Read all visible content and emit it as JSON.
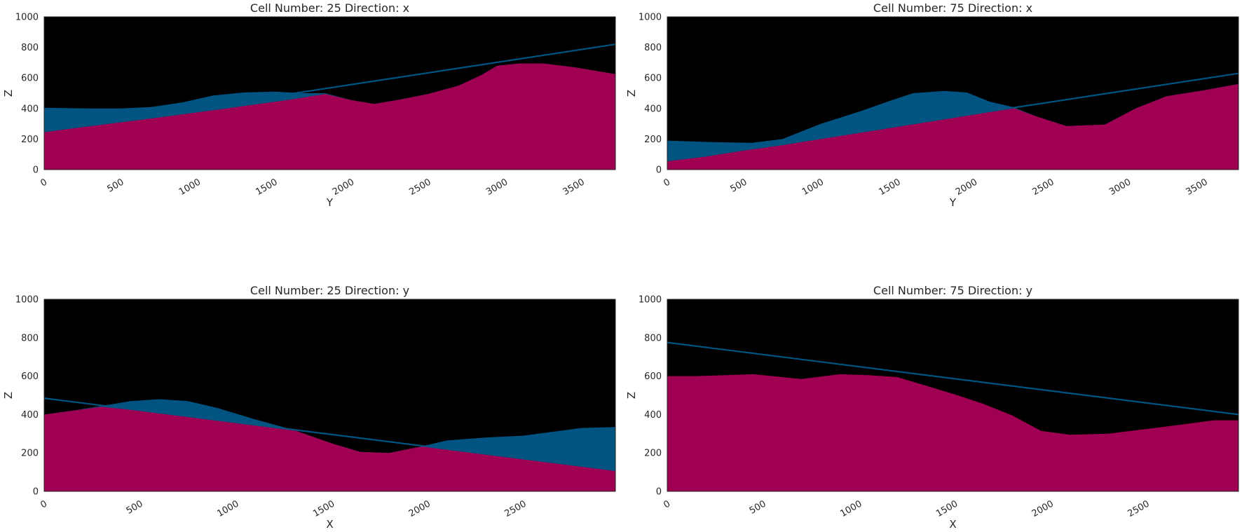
{
  "colors": {
    "background": "#000000",
    "lower_layer": "#9f0052",
    "upper_layer": "#015482",
    "fault_line": "#015482",
    "frame": "#262626"
  },
  "chart_data": [
    {
      "type": "area",
      "title": "Cell Number: 25 Direction: x",
      "xlabel": "Y",
      "ylabel": "Z",
      "xlim": [
        0,
        3720
      ],
      "ylim": [
        0,
        1000
      ],
      "xticks": [
        "0",
        "500",
        "1000",
        "1500",
        "2000",
        "2500",
        "3000",
        "3500"
      ],
      "yticks": [
        "0",
        "200",
        "400",
        "600",
        "800",
        "1000"
      ],
      "grid": false,
      "series": [
        {
          "x": [
            0,
            300,
            500,
            700,
            900,
            1100,
            1300,
            1500,
            1700,
            1830,
            2000,
            2150,
            2300,
            2500,
            2700,
            2850,
            2950,
            3100,
            3250,
            3450,
            3720
          ],
          "values": [
            405,
            400,
            400,
            410,
            440,
            485,
            505,
            510,
            500,
            500,
            455,
            430,
            455,
            495,
            550,
            620,
            680,
            695,
            695,
            670,
            625
          ]
        },
        {
          "x": [
            0,
            200,
            400,
            600,
            800,
            1000,
            1200,
            1400,
            1600,
            1830,
            2000,
            2150,
            2300,
            2500,
            2700,
            2850,
            2950,
            3100,
            3250,
            3450,
            3720
          ],
          "values": [
            245,
            272,
            297,
            322,
            348,
            375,
            402,
            430,
            458,
            495,
            455,
            430,
            455,
            495,
            550,
            620,
            680,
            695,
            695,
            670,
            625
          ]
        },
        {
          "x": [
            0,
            3720
          ],
          "values": [
            250,
            820
          ]
        }
      ]
    },
    {
      "type": "area",
      "title": "Cell Number: 75 Direction: x",
      "xlabel": "Y",
      "ylabel": "Z",
      "xlim": [
        0,
        3720
      ],
      "ylim": [
        0,
        1000
      ],
      "xticks": [
        "0",
        "500",
        "1000",
        "1500",
        "2000",
        "2500",
        "3000",
        "3500"
      ],
      "yticks": [
        "0",
        "200",
        "400",
        "600",
        "800",
        "1000"
      ],
      "grid": false,
      "series": [
        {
          "x": [
            0,
            300,
            550,
            750,
            1000,
            1250,
            1450,
            1600,
            1800,
            1950,
            2100,
            2250,
            2400,
            2600,
            2850,
            3050,
            3250,
            3500,
            3720
          ],
          "values": [
            190,
            180,
            175,
            200,
            300,
            380,
            450,
            500,
            515,
            505,
            445,
            410,
            350,
            285,
            295,
            400,
            480,
            520,
            560
          ]
        },
        {
          "x": [
            0,
            250,
            500,
            750,
            1000,
            1250,
            1500,
            1750,
            2000,
            2200,
            2250,
            2400,
            2600,
            2850,
            3050,
            3250,
            3500,
            3720
          ],
          "values": [
            55,
            85,
            125,
            160,
            200,
            240,
            280,
            320,
            360,
            395,
            405,
            350,
            285,
            295,
            400,
            480,
            520,
            560
          ]
        },
        {
          "x": [
            0,
            3720
          ],
          "values": [
            60,
            630
          ]
        }
      ]
    },
    {
      "type": "area",
      "title": "Cell Number: 25 Direction: y",
      "xlabel": "X",
      "ylabel": "Z",
      "xlim": [
        0,
        2980
      ],
      "ylim": [
        0,
        1000
      ],
      "xticks": [
        "0",
        "500",
        "1000",
        "1500",
        "2000",
        "2500"
      ],
      "yticks": [
        "0",
        "200",
        "400",
        "600",
        "800",
        "1000"
      ],
      "grid": false,
      "series": [
        {
          "x": [
            0,
            150,
            300,
            450,
            600,
            750,
            900,
            1100,
            1300,
            1500,
            1650,
            1800,
            1950,
            2100,
            2300,
            2500,
            2650,
            2800,
            2980
          ],
          "values": [
            400,
            420,
            445,
            470,
            480,
            470,
            435,
            375,
            320,
            250,
            205,
            200,
            230,
            265,
            280,
            290,
            310,
            330,
            335
          ]
        },
        {
          "x": [
            0,
            150,
            300,
            500,
            700,
            900,
            1100,
            1300,
            1500,
            1650,
            1800,
            1950,
            2000,
            2200,
            2400,
            2600,
            2800,
            2980
          ],
          "values": [
            400,
            420,
            440,
            420,
            395,
            370,
            345,
            320,
            250,
            205,
            200,
            230,
            235,
            210,
            185,
            160,
            135,
            110
          ]
        },
        {
          "x": [
            0,
            2980
          ],
          "values": [
            485,
            110
          ]
        }
      ]
    },
    {
      "type": "area",
      "title": "Cell Number: 75 Direction: y",
      "xlabel": "X",
      "ylabel": "Z",
      "xlim": [
        0,
        2980
      ],
      "ylim": [
        0,
        1000
      ],
      "xticks": [
        "0",
        "500",
        "1000",
        "1500",
        "2000",
        "2500"
      ],
      "yticks": [
        "0",
        "200",
        "400",
        "600",
        "800",
        "1000"
      ],
      "grid": false,
      "series": [
        {
          "x": [
            0,
            150,
            300,
            450,
            550,
            700,
            900,
            1050,
            1200,
            1350,
            1500,
            1650,
            1800,
            1950,
            2100,
            2300,
            2500,
            2700,
            2850,
            2980
          ],
          "values": [
            600,
            600,
            605,
            610,
            600,
            585,
            610,
            605,
            595,
            550,
            505,
            455,
            395,
            315,
            295,
            300,
            325,
            350,
            370,
            370
          ]
        },
        {
          "x": [
            0,
            2980
          ],
          "values": [
            775,
            400
          ]
        }
      ]
    }
  ]
}
